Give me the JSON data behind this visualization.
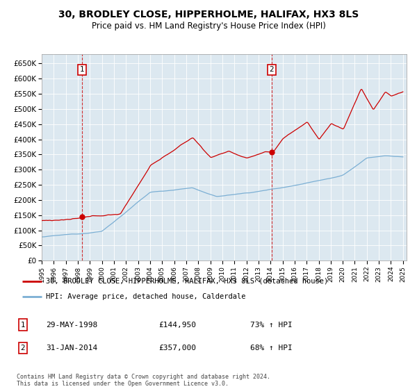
{
  "title1": "30, BRODLEY CLOSE, HIPPERHOLME, HALIFAX, HX3 8LS",
  "title2": "Price paid vs. HM Land Registry's House Price Index (HPI)",
  "legend_line1": "30, BRODLEY CLOSE, HIPPERHOLME, HALIFAX, HX3 8LS (detached house)",
  "legend_line2": "HPI: Average price, detached house, Calderdale",
  "transaction1_date": "29-MAY-1998",
  "transaction1_price": "£144,950",
  "transaction1_hpi": "73% ↑ HPI",
  "transaction2_date": "31-JAN-2014",
  "transaction2_price": "£357,000",
  "transaction2_hpi": "68% ↑ HPI",
  "footer": "Contains HM Land Registry data © Crown copyright and database right 2024.\nThis data is licensed under the Open Government Licence v3.0.",
  "hpi_color": "#7bafd4",
  "price_color": "#cc0000",
  "plot_bg": "#dce8f0",
  "ylim": [
    0,
    680000
  ],
  "ytick_values": [
    0,
    50000,
    100000,
    150000,
    200000,
    250000,
    300000,
    350000,
    400000,
    450000,
    500000,
    550000,
    600000,
    650000
  ],
  "ytick_labels": [
    "£0",
    "£50K",
    "£100K",
    "£150K",
    "£200K",
    "£250K",
    "£300K",
    "£350K",
    "£400K",
    "£450K",
    "£500K",
    "£550K",
    "£600K",
    "£650K"
  ],
  "t1_year_float": 1998.37,
  "t1_price": 144950,
  "t2_year_float": 2014.08,
  "t2_price": 357000
}
